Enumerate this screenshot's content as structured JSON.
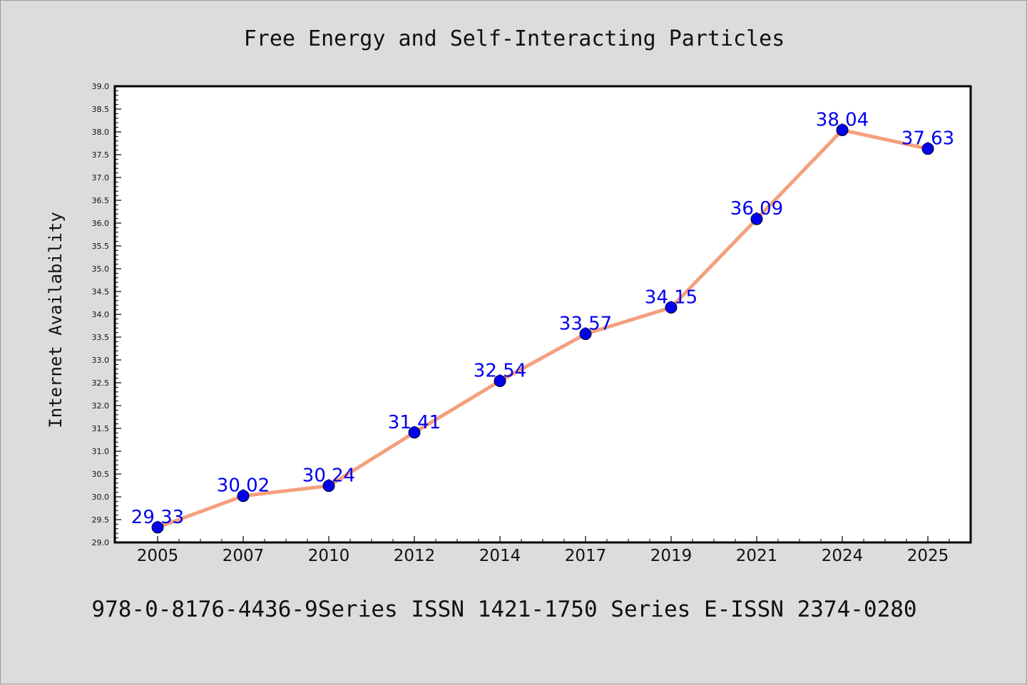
{
  "chart_data": {
    "type": "line",
    "title": "Free Energy and Self-Interacting Particles",
    "ylabel": "Internet Availability",
    "xlabel": "",
    "footer": "978-0-8176-4436-9Series ISSN 1421-1750 Series E-ISSN 2374-0280",
    "categories": [
      "2005",
      "2007",
      "2010",
      "2012",
      "2014",
      "2017",
      "2019",
      "2021",
      "2024",
      "2025"
    ],
    "values": [
      29.33,
      30.02,
      30.24,
      31.41,
      32.54,
      33.57,
      34.15,
      36.09,
      38.04,
      37.63
    ],
    "data_labels": [
      "29.33",
      "30.02",
      "30.24",
      "31.41",
      "32.54",
      "33.57",
      "34.15",
      "36.09",
      "38.04",
      "37.63"
    ],
    "ylim": [
      29.0,
      39.0
    ],
    "yticks": [
      "29.0",
      "29.5",
      "30.0",
      "30.5",
      "31.0",
      "31.5",
      "32.0",
      "32.5",
      "33.0",
      "33.5",
      "34.0",
      "34.5",
      "35.0",
      "35.5",
      "36.0",
      "36.5",
      "37.0",
      "37.5",
      "38.0",
      "38.5",
      "39.0"
    ],
    "grid": false,
    "legend": "none",
    "colors": {
      "line": "#f4a07e",
      "marker": "#0000ee",
      "label": "#0000ee",
      "plot_background": "#ffffff",
      "figure_background": "#dcdcdc"
    }
  }
}
